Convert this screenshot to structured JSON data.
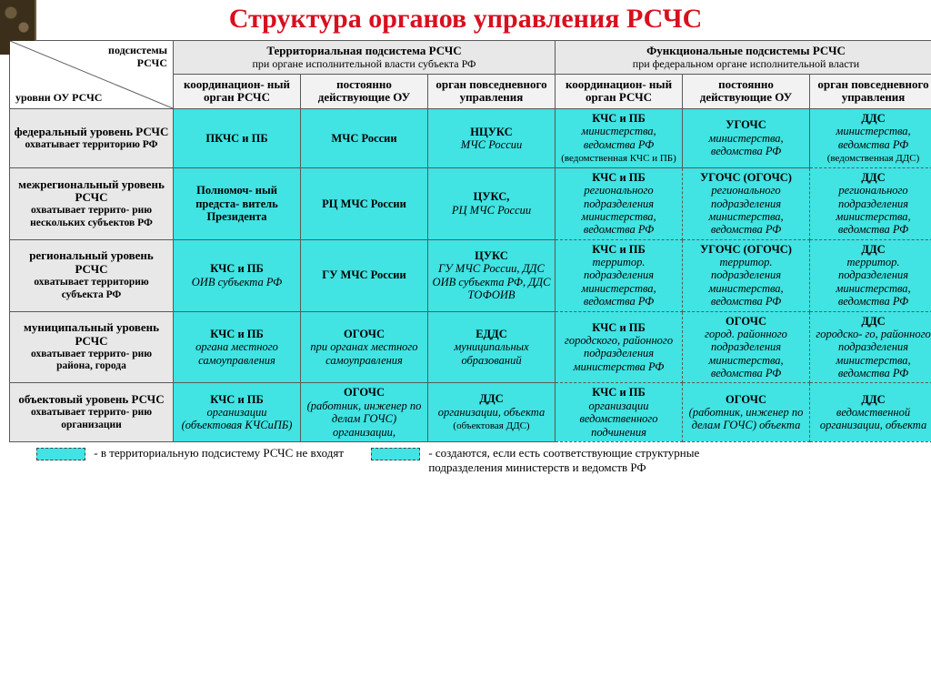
{
  "colors": {
    "title": "#d8101e",
    "cell_bg": "#41e3e3",
    "header_bg": "#e8e8e8",
    "subheader_bg": "#f2f2f2",
    "border": "#5a5a5a",
    "page_bg": "#ffffff"
  },
  "title": "Структура органов управления РСЧС",
  "corner": {
    "top": "подсистемы РСЧС",
    "bottom": "уровни ОУ РСЧС"
  },
  "groups": [
    {
      "title": "Территориальная подсистема РСЧС",
      "sub": "при органе исполнительной власти субъекта РФ",
      "cols": [
        "координацион-\nный\nорган РСЧС",
        "постоянно действующие ОУ",
        "орган повседневного управления"
      ]
    },
    {
      "title": "Функциональные подсистемы РСЧС",
      "sub": "при федеральном органе исполнительной власти",
      "cols": [
        "координацион-\nный\nорган РСЧС",
        "постоянно действующие ОУ",
        "орган повседневного управления"
      ]
    }
  ],
  "rows": [
    {
      "head_bold": "федеральный уровень РСЧС",
      "head_desc": "охватывает территорию РФ",
      "cells": [
        {
          "b": "ПКЧС и ПБ"
        },
        {
          "b": "МЧС России"
        },
        {
          "b": "НЦУКС",
          "it": "МЧС России"
        },
        {
          "b": "КЧС и ПБ",
          "it": "министерства, ведомства РФ",
          "small": "(ведомственная КЧС и ПБ)"
        },
        {
          "b": "УГОЧС",
          "it": "министерства, ведомства РФ"
        },
        {
          "b": "ДДС",
          "it": "министерства, ведомства РФ",
          "small": "(ведомственная ДДС)",
          "dashed": true
        }
      ]
    },
    {
      "head_bold": "межрегиональный уровень РСЧС",
      "head_desc": "охватывает террито-\nрию нескольких субъектов РФ",
      "cells": [
        {
          "b": "Полномоч-\nный предста-\nвитель Президента"
        },
        {
          "b": "РЦ МЧС России"
        },
        {
          "b": "ЦУКС,",
          "it": "РЦ МЧС России"
        },
        {
          "b": "КЧС и ПБ",
          "it": "регионального подразделения министерства, ведомства РФ",
          "dashed": true
        },
        {
          "b": "УГОЧС (ОГОЧС)",
          "it": "регионального подразделения министерства, ведомства РФ",
          "dashed": true
        },
        {
          "b": "ДДС",
          "it": "регионального подразделения министерства, ведомства РФ",
          "dashed": true
        }
      ]
    },
    {
      "head_bold": "региональный уровень РСЧС",
      "head_desc": "охватывает территорию субъекта РФ",
      "cells": [
        {
          "b": "КЧС и ПБ",
          "it": "ОИВ субъекта РФ"
        },
        {
          "b": "ГУ МЧС России"
        },
        {
          "b": "ЦУКС",
          "it": "ГУ МЧС России, ДДС ОИВ субъекта РФ, ДДС ТОФОИВ"
        },
        {
          "b": "КЧС и ПБ",
          "it": "территор. подразделения министерства, ведомства РФ",
          "dashed": true
        },
        {
          "b": "УГОЧС (ОГОЧС)",
          "it": "территор. подразделения министерства, ведомства РФ",
          "dashed": true
        },
        {
          "b": "ДДС",
          "it": "территор. подразделения министерства, ведомства РФ",
          "dashed": true
        }
      ]
    },
    {
      "head_bold": "муниципальный уровень РСЧС",
      "head_desc": "охватывает террито-\nрию района, города",
      "cells": [
        {
          "b": "КЧС и ПБ",
          "it": "органа местного самоуправления"
        },
        {
          "b": "ОГОЧС",
          "it": "при органах местного самоуправления"
        },
        {
          "b": "ЕДДС",
          "it": "муниципальных образований"
        },
        {
          "b": "КЧС и ПБ",
          "it": "городского, районного подразделения министерства РФ",
          "dashed": true
        },
        {
          "b": "ОГОЧС",
          "it": "город. районного подразделения министерства, ведомства РФ",
          "dashed": true
        },
        {
          "b": "ДДС",
          "it": "городско-\nго, районного подразделения министерства, ведомства РФ",
          "dashed": true
        }
      ]
    },
    {
      "head_bold": "объектовый уровень РСЧС",
      "head_desc": "охватывает террито-\nрию организации",
      "cells": [
        {
          "b": "КЧС и ПБ",
          "it": "организации (объектовая КЧСиПБ)"
        },
        {
          "b": "ОГОЧС",
          "it": "(работник, инженер по делам ГОЧС) организации,"
        },
        {
          "b": "ДДС",
          "it": "организации, объекта",
          "small": "(объектовая ДДС)"
        },
        {
          "b": "КЧС и ПБ",
          "it": "организации ведомственного подчинения",
          "dashed": true
        },
        {
          "b": "ОГОЧС",
          "it": "(работник, инженер по делам ГОЧС) объекта",
          "dashed": true
        },
        {
          "b": "ДДС",
          "it": "ведомственной организации, объекта",
          "dashed": true
        }
      ]
    }
  ],
  "legend": [
    {
      "style": "dashed",
      "text": "- в территориальную подсистему РСЧС не входят"
    },
    {
      "style": "dashed",
      "text": "- создаются, если есть соответствующие структурные подразделения министерств и ведомств РФ"
    }
  ]
}
